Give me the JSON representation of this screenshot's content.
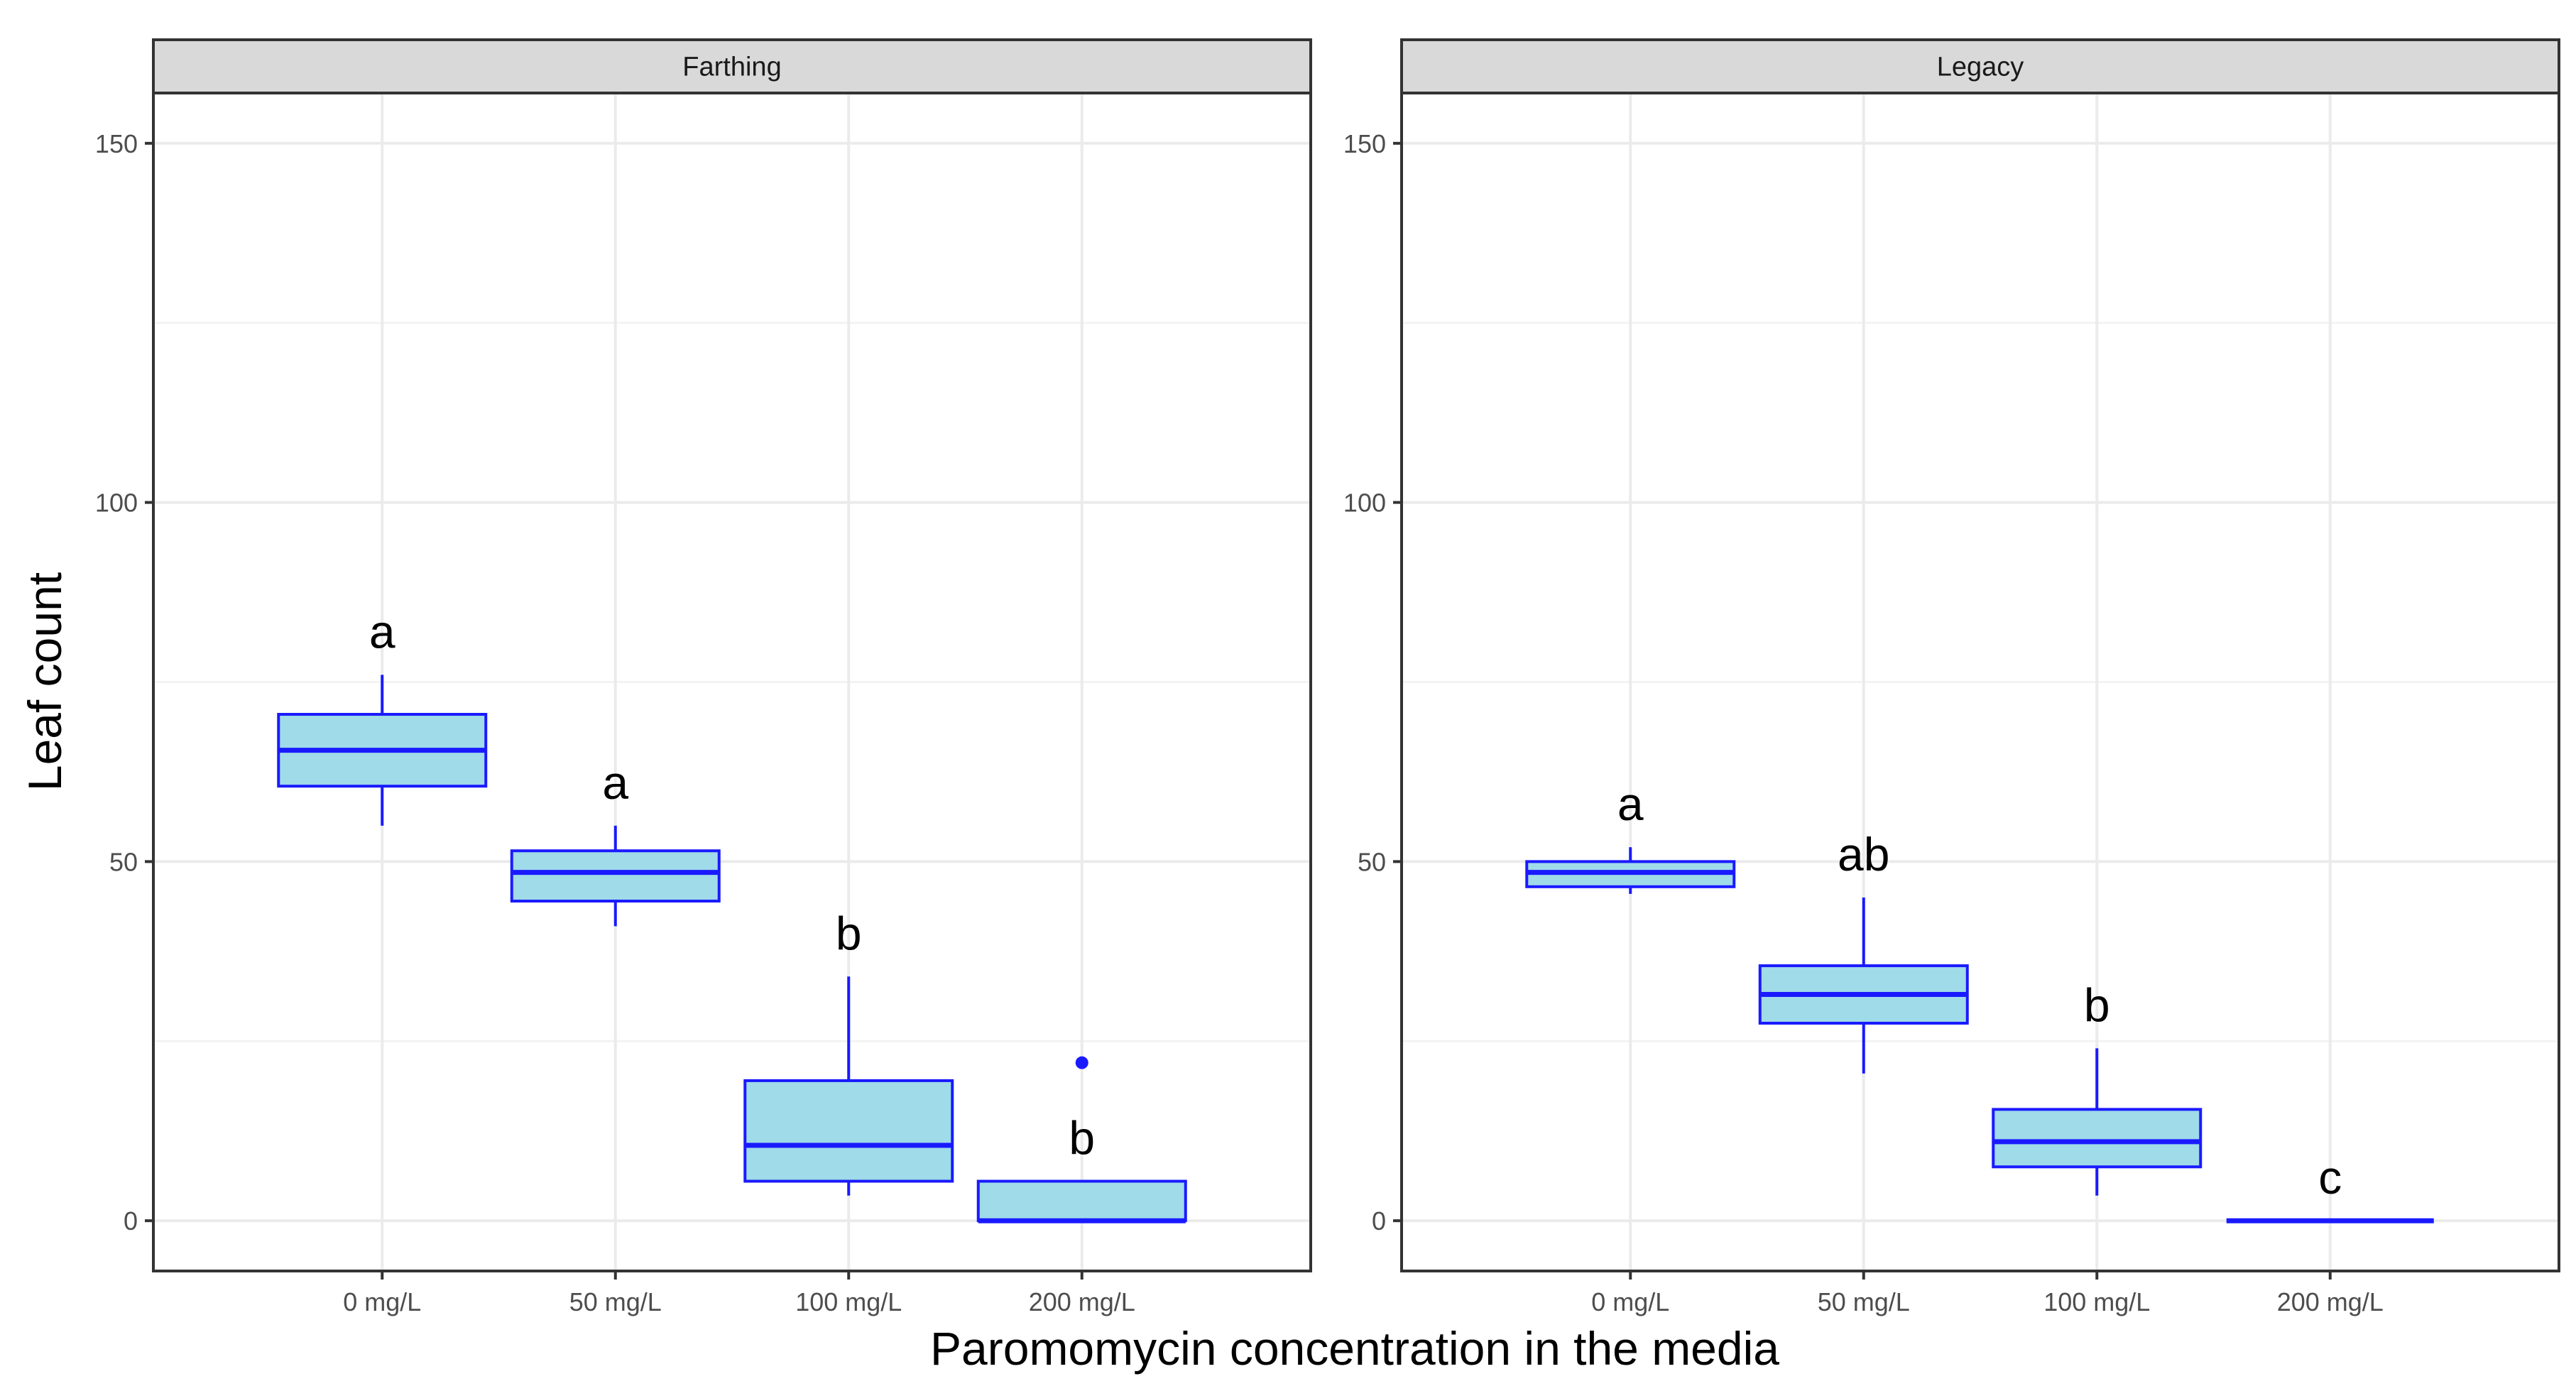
{
  "chart_data": {
    "type": "boxplot",
    "xlabel": "Paromomycin concentration in the media",
    "ylabel": "Leaf count",
    "ylim": [
      -7,
      157
    ],
    "yticks": [
      0,
      50,
      100,
      150
    ],
    "categories": [
      "0 mg/L",
      "50 mg/L",
      "100 mg/L",
      "200 mg/L"
    ],
    "colors": {
      "box_fill": "#9fdbe8",
      "box_stroke": "#1a1aff",
      "strip_fill": "#d9d9d9",
      "panel_border": "#333333",
      "grid": "#ebebeb"
    },
    "panels": [
      {
        "title": "Farthing",
        "boxes": [
          {
            "category": "0 mg/L",
            "whisker_low": 55,
            "q1": 60.5,
            "median": 65.5,
            "q3": 70.5,
            "whisker_high": 76,
            "outliers": [],
            "letter": "a"
          },
          {
            "category": "50 mg/L",
            "whisker_low": 41,
            "q1": 44.5,
            "median": 48.5,
            "q3": 51.5,
            "whisker_high": 55,
            "outliers": [],
            "letter": "a"
          },
          {
            "category": "100 mg/L",
            "whisker_low": 3.5,
            "q1": 5.5,
            "median": 10.5,
            "q3": 19.5,
            "whisker_high": 34,
            "outliers": [],
            "letter": "b"
          },
          {
            "category": "200 mg/L",
            "whisker_low": 0,
            "q1": 0,
            "median": 0,
            "q3": 5.5,
            "whisker_high": 5.5,
            "outliers": [
              22
            ],
            "letter": "b"
          }
        ]
      },
      {
        "title": "Legacy",
        "boxes": [
          {
            "category": "0 mg/L",
            "whisker_low": 45.5,
            "q1": 46.5,
            "median": 48.5,
            "q3": 50,
            "whisker_high": 52,
            "outliers": [],
            "letter": "a"
          },
          {
            "category": "50 mg/L",
            "whisker_low": 20.5,
            "q1": 27.5,
            "median": 31.5,
            "q3": 35.5,
            "whisker_high": 45,
            "outliers": [],
            "letter": "ab"
          },
          {
            "category": "100 mg/L",
            "whisker_low": 3.5,
            "q1": 7.5,
            "median": 11,
            "q3": 15.5,
            "whisker_high": 24,
            "outliers": [],
            "letter": "b"
          },
          {
            "category": "200 mg/L",
            "whisker_low": 0,
            "q1": 0,
            "median": 0,
            "q3": 0,
            "whisker_high": 0,
            "outliers": [],
            "letter": "c"
          }
        ]
      }
    ]
  }
}
